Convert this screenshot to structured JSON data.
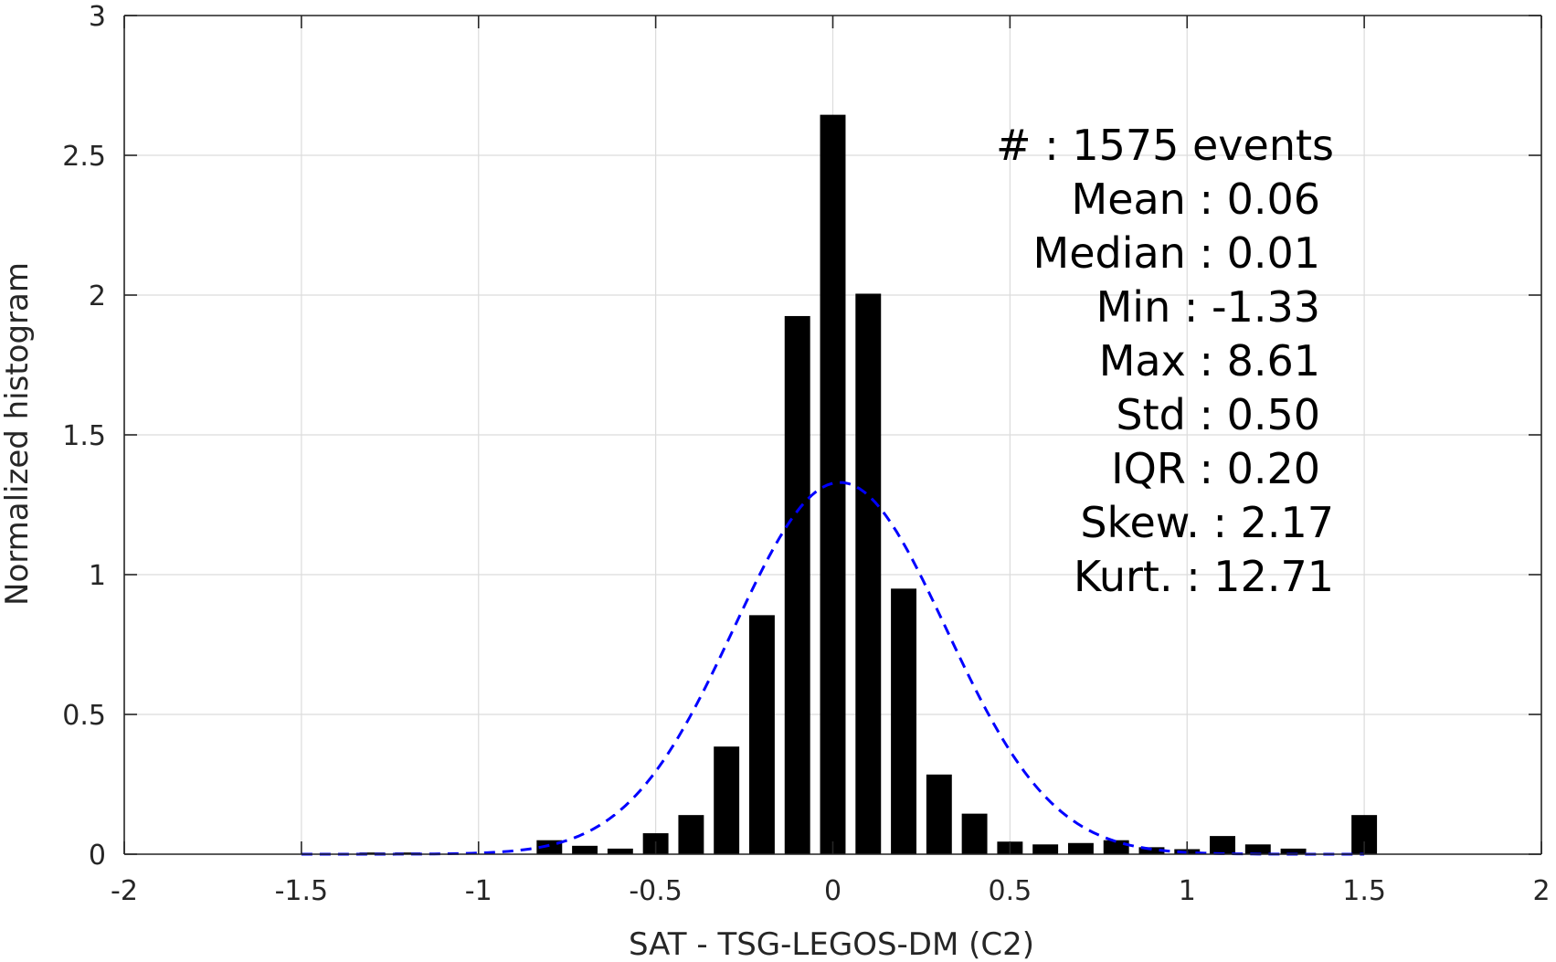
{
  "chart_data": {
    "type": "bar",
    "xlabel": "SAT - TSG-LEGOS-DM (C2)",
    "ylabel": "Normalized histogram",
    "xlim": [
      -2,
      2
    ],
    "ylim": [
      0,
      3
    ],
    "grid": true,
    "x_ticks": [
      "-2",
      "-1.5",
      "-1",
      "-0.5",
      "0",
      "0.5",
      "1",
      "1.5",
      "2"
    ],
    "y_ticks": [
      "0",
      "0.5",
      "1",
      "1.5",
      "2",
      "2.5",
      "3"
    ],
    "bin_width": 0.1,
    "bar_color": "#000000",
    "fit_color": "#0000ff",
    "bins": {
      "x": [
        -1.3,
        -1.2,
        -1.1,
        -1.0,
        -0.9,
        -0.8,
        -0.7,
        -0.6,
        -0.5,
        -0.4,
        -0.3,
        -0.2,
        -0.1,
        0.0,
        0.1,
        0.2,
        0.3,
        0.4,
        0.5,
        0.6,
        0.7,
        0.8,
        0.9,
        1.0,
        1.1,
        1.2,
        1.3,
        1.4,
        1.5
      ],
      "y": [
        0.006,
        0.006,
        0,
        0,
        0,
        0.05,
        0.03,
        0.02,
        0.075,
        0.14,
        0.385,
        0.855,
        1.925,
        2.645,
        2.005,
        0.95,
        0.285,
        0.145,
        0.045,
        0.035,
        0.04,
        0.05,
        0.025,
        0.018,
        0.065,
        0.035,
        0.02,
        0,
        0.14
      ]
    },
    "normal_fit": {
      "mean": 0.02,
      "std": 0.3,
      "peak": 1.33,
      "x_range": [
        -1.5,
        1.5
      ],
      "style": "dashed"
    },
    "stats": [
      {
        "label": "#  : 1575 events"
      },
      {
        "label": "Mean : 0.06"
      },
      {
        "label": "Median : 0.01"
      },
      {
        "label": "Min : -1.33"
      },
      {
        "label": "Max : 8.61"
      },
      {
        "label": "Std : 0.50"
      },
      {
        "label": "IQR : 0.20"
      },
      {
        "label": "Skew. : 2.17"
      },
      {
        "label": "Kurt. : 12.71"
      }
    ]
  }
}
